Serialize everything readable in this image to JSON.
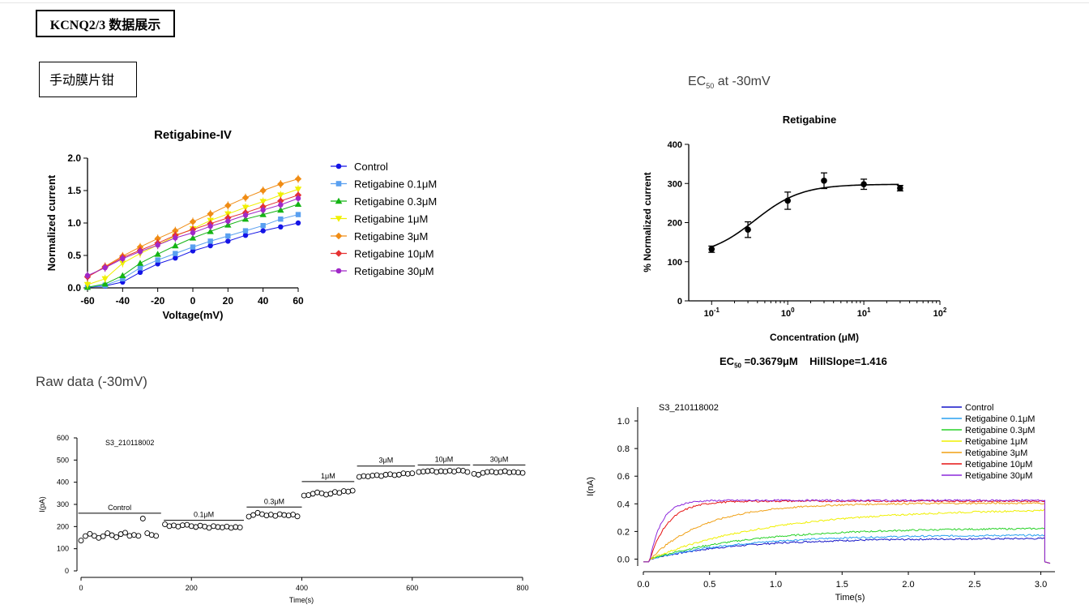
{
  "page": {
    "title": "KCNQ2/3 数据展示",
    "subtitle": "手动膜片钳",
    "ec50_section_prefix": "EC",
    "ec50_section_sub": "50",
    "ec50_section_suffix": " at -30mV",
    "raw_section": "Raw data (-30mV)",
    "ec50_result_prefix": "EC",
    "ec50_result_sub": "50",
    "ec50_result_suffix": " =0.3679μM    HillSlope=1.416"
  },
  "chart_data": [
    {
      "id": "iv",
      "type": "line",
      "title": "Retigabine-IV",
      "xlabel": "Voltage(mV)",
      "ylabel": "Normalized current",
      "xlim": [
        -60,
        60
      ],
      "ylim": [
        0,
        2.0
      ],
      "x": [
        -60,
        -50,
        -40,
        -30,
        -20,
        -10,
        0,
        10,
        20,
        30,
        40,
        50,
        60
      ],
      "x_ticks": [
        "-60",
        "-40",
        "-20",
        "0",
        "20",
        "40",
        "60"
      ],
      "y_ticks": [
        "0.0",
        "0.5",
        "1.0",
        "1.5",
        "2.0"
      ],
      "series": [
        {
          "name": "Control",
          "color": "#1414e6",
          "marker": "circle",
          "values": [
            0.01,
            0.03,
            0.09,
            0.24,
            0.37,
            0.46,
            0.57,
            0.65,
            0.72,
            0.81,
            0.88,
            0.94,
            1.0
          ]
        },
        {
          "name": "Retigabine 0.1μM",
          "color": "#5aa0f0",
          "marker": "square",
          "values": [
            0.01,
            0.04,
            0.14,
            0.31,
            0.43,
            0.53,
            0.63,
            0.72,
            0.8,
            0.88,
            0.96,
            1.06,
            1.13
          ]
        },
        {
          "name": "Retigabine 0.3μM",
          "color": "#14b414",
          "marker": "triangle",
          "values": [
            0.01,
            0.06,
            0.19,
            0.38,
            0.52,
            0.65,
            0.77,
            0.87,
            0.97,
            1.06,
            1.13,
            1.2,
            1.29
          ]
        },
        {
          "name": "Retigabine 1μM",
          "color": "#f0f000",
          "marker": "triangle-down",
          "values": [
            0.05,
            0.14,
            0.38,
            0.53,
            0.66,
            0.8,
            0.91,
            1.04,
            1.14,
            1.24,
            1.33,
            1.43,
            1.52
          ]
        },
        {
          "name": "Retigabine 3μM",
          "color": "#f08c14",
          "marker": "diamond",
          "values": [
            0.17,
            0.33,
            0.49,
            0.63,
            0.76,
            0.88,
            1.02,
            1.14,
            1.27,
            1.39,
            1.5,
            1.6,
            1.68
          ]
        },
        {
          "name": "Retigabine 10μM",
          "color": "#e63232",
          "marker": "diamond",
          "values": [
            0.17,
            0.32,
            0.47,
            0.58,
            0.69,
            0.81,
            0.9,
            0.99,
            1.08,
            1.16,
            1.25,
            1.34,
            1.43
          ]
        },
        {
          "name": "Retigabine 30μM",
          "color": "#a028c8",
          "marker": "circle",
          "values": [
            0.19,
            0.31,
            0.45,
            0.56,
            0.66,
            0.77,
            0.85,
            0.95,
            1.03,
            1.12,
            1.2,
            1.28,
            1.38
          ]
        }
      ]
    },
    {
      "id": "ec50",
      "type": "scatter",
      "title": "Retigabine",
      "xlabel": "Concentration (μM)",
      "ylabel": "% Normalized current",
      "x_scale": "log",
      "xlim": [
        0.05,
        100
      ],
      "ylim": [
        0,
        400
      ],
      "x_ticks": [
        {
          "base": "10",
          "exp": "-1"
        },
        {
          "base": "10",
          "exp": "0"
        },
        {
          "base": "10",
          "exp": "1"
        },
        {
          "base": "10",
          "exp": "2"
        }
      ],
      "y_ticks": [
        "0",
        "100",
        "200",
        "300",
        "400"
      ],
      "points": [
        {
          "x": 0.1,
          "y": 132,
          "err": 8
        },
        {
          "x": 0.3,
          "y": 182,
          "err": 20
        },
        {
          "x": 1,
          "y": 256,
          "err": 22
        },
        {
          "x": 3,
          "y": 307,
          "err": 20
        },
        {
          "x": 10,
          "y": 298,
          "err": 13
        },
        {
          "x": 30,
          "y": 288,
          "err": 7
        }
      ],
      "fit": {
        "bottom": 113,
        "top": 298,
        "ec50": 0.3679,
        "hill": 1.416
      }
    },
    {
      "id": "raw",
      "type": "scatter",
      "annotation": "S3_210118002",
      "xlabel": "Time(s)",
      "ylabel": "I(pA)",
      "xlim": [
        0,
        800
      ],
      "ylim": [
        0,
        600
      ],
      "x_ticks": [
        "0",
        "200",
        "400",
        "600",
        "800"
      ],
      "y_ticks": [
        "0",
        "100",
        "200",
        "300",
        "400",
        "500",
        "600"
      ],
      "segments": [
        {
          "label": "Control",
          "x0": -5,
          "x1": 145,
          "y": 260
        },
        {
          "label": "0.1μM",
          "x0": 150,
          "x1": 295,
          "y": 228
        },
        {
          "label": "0.3μM",
          "x0": 300,
          "x1": 400,
          "y": 288
        },
        {
          "label": "1μM",
          "x0": 400,
          "x1": 495,
          "y": 403
        },
        {
          "label": "3μM",
          "x0": 500,
          "x1": 605,
          "y": 473
        },
        {
          "label": "10μM",
          "x0": 610,
          "x1": 705,
          "y": 478
        },
        {
          "label": "30μM",
          "x0": 710,
          "x1": 805,
          "y": 478
        }
      ],
      "points": [
        [
          0,
          137
        ],
        [
          8,
          157
        ],
        [
          16,
          167
        ],
        [
          24,
          158
        ],
        [
          32,
          149
        ],
        [
          40,
          156
        ],
        [
          48,
          170
        ],
        [
          56,
          161
        ],
        [
          64,
          152
        ],
        [
          72,
          166
        ],
        [
          80,
          172
        ],
        [
          88,
          158
        ],
        [
          96,
          162
        ],
        [
          104,
          158
        ],
        [
          112,
          236
        ],
        [
          120,
          170
        ],
        [
          128,
          162
        ],
        [
          136,
          158
        ],
        [
          152,
          210
        ],
        [
          160,
          202
        ],
        [
          168,
          205
        ],
        [
          176,
          200
        ],
        [
          184,
          206
        ],
        [
          192,
          208
        ],
        [
          200,
          202
        ],
        [
          208,
          198
        ],
        [
          216,
          204
        ],
        [
          224,
          200
        ],
        [
          232,
          194
        ],
        [
          240,
          202
        ],
        [
          248,
          198
        ],
        [
          256,
          196
        ],
        [
          264,
          200
        ],
        [
          272,
          194
        ],
        [
          280,
          198
        ],
        [
          288,
          196
        ],
        [
          304,
          245
        ],
        [
          312,
          252
        ],
        [
          320,
          262
        ],
        [
          328,
          256
        ],
        [
          336,
          250
        ],
        [
          344,
          254
        ],
        [
          352,
          248
        ],
        [
          360,
          256
        ],
        [
          368,
          252
        ],
        [
          376,
          250
        ],
        [
          384,
          254
        ],
        [
          392,
          246
        ],
        [
          404,
          340
        ],
        [
          412,
          342
        ],
        [
          420,
          348
        ],
        [
          428,
          354
        ],
        [
          436,
          350
        ],
        [
          444,
          344
        ],
        [
          452,
          348
        ],
        [
          460,
          356
        ],
        [
          468,
          352
        ],
        [
          476,
          360
        ],
        [
          484,
          358
        ],
        [
          492,
          362
        ],
        [
          504,
          424
        ],
        [
          512,
          428
        ],
        [
          520,
          426
        ],
        [
          528,
          430
        ],
        [
          536,
          432
        ],
        [
          544,
          428
        ],
        [
          552,
          434
        ],
        [
          560,
          436
        ],
        [
          568,
          432
        ],
        [
          576,
          434
        ],
        [
          584,
          440
        ],
        [
          592,
          438
        ],
        [
          600,
          440
        ],
        [
          612,
          446
        ],
        [
          620,
          448
        ],
        [
          628,
          450
        ],
        [
          636,
          452
        ],
        [
          644,
          446
        ],
        [
          652,
          450
        ],
        [
          660,
          448
        ],
        [
          668,
          452
        ],
        [
          676,
          448
        ],
        [
          684,
          454
        ],
        [
          692,
          452
        ],
        [
          700,
          446
        ],
        [
          712,
          438
        ],
        [
          720,
          434
        ],
        [
          728,
          442
        ],
        [
          736,
          446
        ],
        [
          744,
          448
        ],
        [
          752,
          444
        ],
        [
          760,
          446
        ],
        [
          768,
          450
        ],
        [
          776,
          444
        ],
        [
          784,
          446
        ],
        [
          792,
          444
        ],
        [
          800,
          442
        ]
      ]
    },
    {
      "id": "traces",
      "type": "line",
      "annotation": "S3_210118002",
      "xlabel": "Time(s)",
      "ylabel": "I(nA)",
      "xlim": [
        0,
        3.07
      ],
      "ylim": [
        -0.05,
        1.1
      ],
      "x_ticks": [
        "0.0",
        "0.5",
        "1.0",
        "1.5",
        "2.0",
        "2.5",
        "3.0"
      ],
      "y_ticks": [
        "0.0",
        "0.2",
        "0.4",
        "0.6",
        "0.8",
        "1.0"
      ],
      "series": [
        {
          "name": "Control",
          "color": "#1414c8",
          "plateau": 0.15,
          "tau": 0.65
        },
        {
          "name": "Retigabine 0.1μM",
          "color": "#28a0f0",
          "plateau": 0.175,
          "tau": 0.7
        },
        {
          "name": "Retigabine 0.3μM",
          "color": "#28d228",
          "plateau": 0.225,
          "tau": 0.75
        },
        {
          "name": "Retigabine 1μM",
          "color": "#f0f000",
          "plateau": 0.365,
          "tau": 0.9
        },
        {
          "name": "Retigabine 3μM",
          "color": "#f0a014",
          "plateau": 0.405,
          "tau": 0.42
        },
        {
          "name": "Retigabine 10μM",
          "color": "#e61414",
          "plateau": 0.42,
          "tau": 0.14
        },
        {
          "name": "Retigabine 30μM",
          "color": "#8c28dc",
          "plateau": 0.425,
          "tau": 0.09
        }
      ]
    }
  ]
}
